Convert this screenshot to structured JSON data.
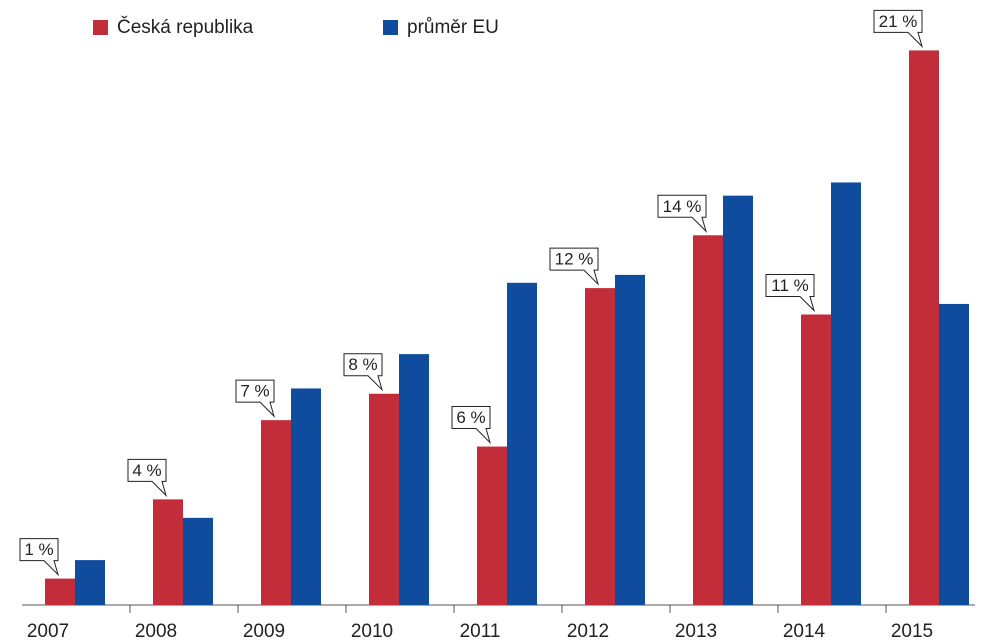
{
  "chart_data": {
    "type": "bar",
    "categories": [
      "2007",
      "2008",
      "2009",
      "2010",
      "2011",
      "2012",
      "2013",
      "2014",
      "2015"
    ],
    "series": [
      {
        "name": "Česká republika",
        "color": "#c22d39",
        "values": [
          1,
          4,
          7,
          8,
          6,
          12,
          14,
          11,
          21
        ],
        "value_labels": [
          "1 %",
          "4 %",
          "7 %",
          "8 %",
          "6 %",
          "12 %",
          "14 %",
          "11 %",
          "21 %"
        ]
      },
      {
        "name": "průměr EU",
        "color": "#0f4c9e",
        "values": [
          1.7,
          3.3,
          8.2,
          9.5,
          12.2,
          12.5,
          15.5,
          16.0,
          11.4
        ]
      }
    ],
    "ylim": [
      0,
      22
    ],
    "legend": "top-left"
  }
}
